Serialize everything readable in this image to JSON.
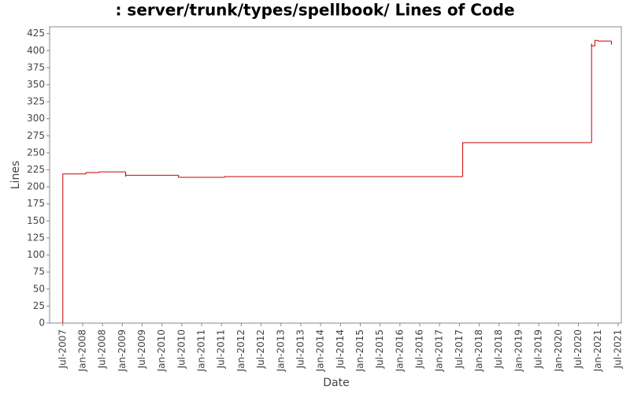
{
  "chart_data": {
    "type": "line",
    "step": true,
    "title": ": server/trunk/types/spellbook/ Lines of Code",
    "x_label": "Date",
    "y_label": "Lines",
    "x": [
      "2007-07",
      "2007-07",
      "2008-02",
      "2008-06",
      "2009-02",
      "2009-02",
      "2010-06",
      "2011-08",
      "2017-08",
      "2017-08",
      "2020-11",
      "2020-11",
      "2020-12",
      "2021-01",
      "2021-05"
    ],
    "series": [
      {
        "name": "Lines",
        "color": "#cc0000",
        "values": [
          0,
          219,
          221,
          222,
          215,
          217,
          214,
          215,
          250,
          265,
          410,
          407,
          415,
          414,
          409
        ]
      }
    ],
    "xlim": [
      "2007-03",
      "2021-08"
    ],
    "xticks": [
      {
        "value": "2007-07",
        "label": "Jul-2007"
      },
      {
        "value": "2008-01",
        "label": "Jan-2008"
      },
      {
        "value": "2008-07",
        "label": "Jul-2008"
      },
      {
        "value": "2009-01",
        "label": "Jan-2009"
      },
      {
        "value": "2009-07",
        "label": "Jul-2009"
      },
      {
        "value": "2010-01",
        "label": "Jan-2010"
      },
      {
        "value": "2010-07",
        "label": "Jul-2010"
      },
      {
        "value": "2011-01",
        "label": "Jan-2011"
      },
      {
        "value": "2011-07",
        "label": "Jul-2011"
      },
      {
        "value": "2012-01",
        "label": "Jan-2012"
      },
      {
        "value": "2012-07",
        "label": "Jul-2012"
      },
      {
        "value": "2013-01",
        "label": "Jan-2013"
      },
      {
        "value": "2013-07",
        "label": "Jul-2013"
      },
      {
        "value": "2014-01",
        "label": "Jan-2014"
      },
      {
        "value": "2014-07",
        "label": "Jul-2014"
      },
      {
        "value": "2015-01",
        "label": "Jan-2015"
      },
      {
        "value": "2015-07",
        "label": "Jul-2015"
      },
      {
        "value": "2016-01",
        "label": "Jan-2016"
      },
      {
        "value": "2016-07",
        "label": "Jul-2016"
      },
      {
        "value": "2017-01",
        "label": "Jan-2017"
      },
      {
        "value": "2017-07",
        "label": "Jul-2017"
      },
      {
        "value": "2018-01",
        "label": "Jan-2018"
      },
      {
        "value": "2018-07",
        "label": "Jul-2018"
      },
      {
        "value": "2019-01",
        "label": "Jan-2019"
      },
      {
        "value": "2019-07",
        "label": "Jul-2019"
      },
      {
        "value": "2020-01",
        "label": "Jan-2020"
      },
      {
        "value": "2020-07",
        "label": "Jul-2020"
      },
      {
        "value": "2021-01",
        "label": "Jan-2021"
      },
      {
        "value": "2021-07",
        "label": "Jul-2021"
      }
    ],
    "ylim": [
      0,
      435
    ],
    "yticks": [
      0,
      25,
      50,
      75,
      100,
      125,
      150,
      175,
      200,
      225,
      250,
      275,
      300,
      325,
      350,
      375,
      400,
      425
    ],
    "grid": false
  }
}
